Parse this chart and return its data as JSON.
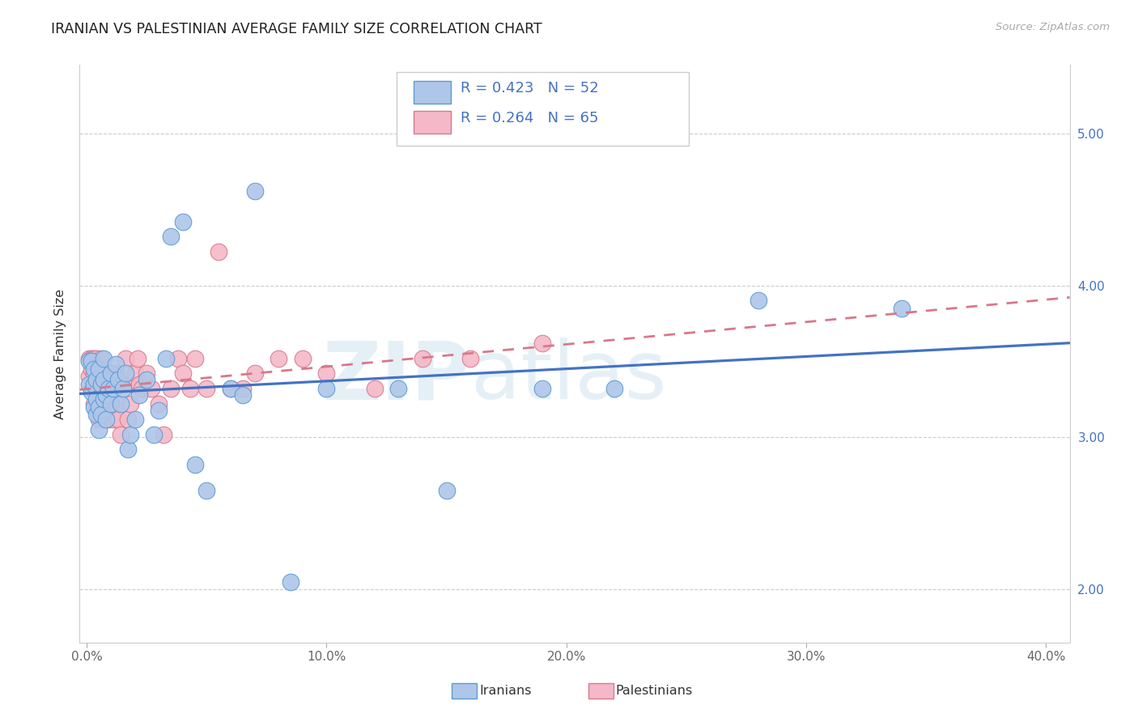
{
  "title": "IRANIAN VS PALESTINIAN AVERAGE FAMILY SIZE CORRELATION CHART",
  "source": "Source: ZipAtlas.com",
  "ylabel": "Average Family Size",
  "xlim": [
    -0.003,
    0.41
  ],
  "ylim": [
    1.65,
    5.45
  ],
  "yticks": [
    2.0,
    3.0,
    4.0,
    5.0
  ],
  "xticks": [
    0.0,
    0.1,
    0.2,
    0.3,
    0.4
  ],
  "xticklabels": [
    "0.0%",
    "10.0%",
    "20.0%",
    "30.0%",
    "40.0%"
  ],
  "right_yticklabels": [
    "2.00",
    "3.00",
    "4.00",
    "5.00"
  ],
  "iranian_fill": "#aec6e8",
  "iranian_edge": "#5b9bd5",
  "palestinian_fill": "#f4b8c8",
  "palestinian_edge": "#d9788a",
  "iranian_line": "#4472c4",
  "palestinian_line": "#d9788a",
  "R_iranian": 0.423,
  "N_iranian": 52,
  "R_palestinian": 0.264,
  "N_palestinian": 65,
  "iranians_x": [
    0.001,
    0.001,
    0.002,
    0.002,
    0.003,
    0.003,
    0.003,
    0.004,
    0.004,
    0.004,
    0.005,
    0.005,
    0.005,
    0.006,
    0.006,
    0.007,
    0.007,
    0.007,
    0.008,
    0.008,
    0.009,
    0.01,
    0.01,
    0.011,
    0.012,
    0.013,
    0.014,
    0.015,
    0.016,
    0.017,
    0.018,
    0.02,
    0.022,
    0.025,
    0.028,
    0.03,
    0.033,
    0.035,
    0.04,
    0.045,
    0.05,
    0.06,
    0.065,
    0.07,
    0.085,
    0.1,
    0.13,
    0.15,
    0.19,
    0.22,
    0.28,
    0.34
  ],
  "iranians_y": [
    3.35,
    3.5,
    3.3,
    3.5,
    3.2,
    3.35,
    3.45,
    3.15,
    3.25,
    3.38,
    3.05,
    3.2,
    3.45,
    3.15,
    3.35,
    3.25,
    3.38,
    3.52,
    3.12,
    3.28,
    3.32,
    3.22,
    3.42,
    3.32,
    3.48,
    3.38,
    3.22,
    3.32,
    3.42,
    2.92,
    3.02,
    3.12,
    3.28,
    3.38,
    3.02,
    3.18,
    3.52,
    4.32,
    4.42,
    2.82,
    2.65,
    3.32,
    3.28,
    4.62,
    2.05,
    3.32,
    3.32,
    2.65,
    3.32,
    3.32,
    3.9,
    3.85
  ],
  "palestinians_x": [
    0.001,
    0.001,
    0.002,
    0.002,
    0.002,
    0.003,
    0.003,
    0.003,
    0.003,
    0.004,
    0.004,
    0.004,
    0.005,
    0.005,
    0.005,
    0.006,
    0.006,
    0.006,
    0.007,
    0.007,
    0.007,
    0.008,
    0.008,
    0.009,
    0.009,
    0.01,
    0.01,
    0.011,
    0.011,
    0.012,
    0.012,
    0.013,
    0.013,
    0.014,
    0.014,
    0.015,
    0.016,
    0.017,
    0.018,
    0.019,
    0.02,
    0.021,
    0.022,
    0.023,
    0.025,
    0.027,
    0.03,
    0.032,
    0.035,
    0.038,
    0.04,
    0.043,
    0.045,
    0.05,
    0.055,
    0.06,
    0.065,
    0.07,
    0.08,
    0.09,
    0.1,
    0.12,
    0.14,
    0.16,
    0.19
  ],
  "palestinians_y": [
    3.4,
    3.52,
    3.32,
    3.45,
    3.52,
    3.22,
    3.35,
    3.42,
    3.52,
    3.22,
    3.35,
    3.52,
    3.12,
    3.32,
    3.45,
    3.22,
    3.35,
    3.52,
    3.12,
    3.25,
    3.42,
    3.22,
    3.35,
    3.12,
    3.35,
    3.22,
    3.42,
    3.12,
    3.35,
    3.22,
    3.42,
    3.12,
    3.35,
    3.02,
    3.35,
    3.35,
    3.52,
    3.12,
    3.22,
    3.35,
    3.42,
    3.52,
    3.35,
    3.32,
    3.42,
    3.32,
    3.22,
    3.02,
    3.32,
    3.52,
    3.42,
    3.32,
    3.52,
    3.32,
    4.22,
    3.32,
    3.32,
    3.42,
    3.52,
    3.52,
    3.42,
    3.32,
    3.52,
    3.52,
    3.62
  ]
}
